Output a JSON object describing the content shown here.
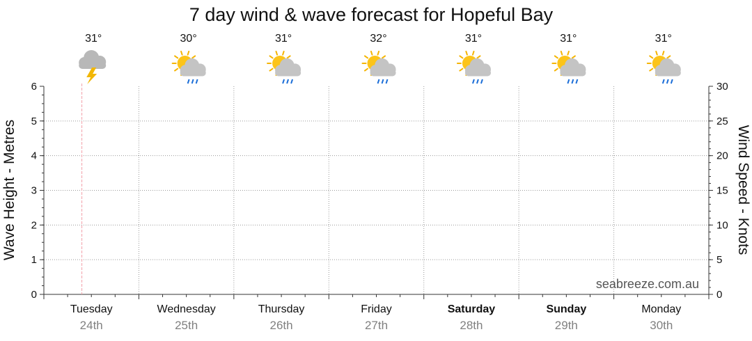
{
  "chart_data": {
    "type": "line",
    "title": "7 day wind & wave forecast for Hopeful Bay",
    "ylabel_left": "Wave Height - Metres",
    "ylabel_right": "Wind Speed - Knots",
    "ylim_left": [
      0,
      6
    ],
    "ylim_right": [
      0,
      30
    ],
    "yticks_left": [
      "0",
      "1",
      "2",
      "3",
      "4",
      "5",
      "6"
    ],
    "yticks_right": [
      "0",
      "5",
      "10",
      "15",
      "20",
      "25",
      "30"
    ],
    "grid": true,
    "days": [
      {
        "name": "Tuesday",
        "date": "24th",
        "temp": "31°",
        "icon": "thunderstorm-icon",
        "bold": false
      },
      {
        "name": "Wednesday",
        "date": "25th",
        "temp": "30°",
        "icon": "sun-cloud-rain-icon",
        "bold": false
      },
      {
        "name": "Thursday",
        "date": "26th",
        "temp": "31°",
        "icon": "sun-cloud-rain-icon",
        "bold": false
      },
      {
        "name": "Friday",
        "date": "27th",
        "temp": "32°",
        "icon": "sun-cloud-rain-icon",
        "bold": false
      },
      {
        "name": "Saturday",
        "date": "28th",
        "temp": "31°",
        "icon": "sun-cloud-rain-icon",
        "bold": true
      },
      {
        "name": "Sunday",
        "date": "29th",
        "temp": "31°",
        "icon": "sun-cloud-rain-icon",
        "bold": true
      },
      {
        "name": "Monday",
        "date": "30th",
        "temp": "31°",
        "icon": "sun-cloud-rain-icon",
        "bold": false
      }
    ],
    "watermark": "seabreeze.com.au",
    "colors": {
      "now_marker": "#f4a0a8",
      "grid": "#999999",
      "axis": "#333333"
    }
  }
}
